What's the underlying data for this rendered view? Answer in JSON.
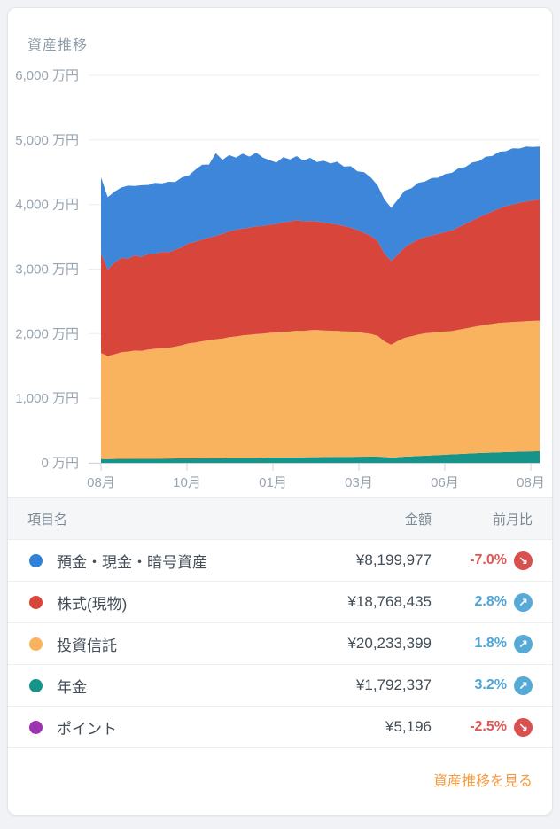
{
  "card": {
    "title": "資産推移"
  },
  "chart_data": {
    "type": "area",
    "stacked": true,
    "title": "資産推移",
    "unit": "万円",
    "ylim": [
      0,
      6000
    ],
    "grid": true,
    "legend_position": "table-below",
    "y_ticks": [
      {
        "value": 6000,
        "label": "6,000 万円"
      },
      {
        "value": 5000,
        "label": "5,000 万円"
      },
      {
        "value": 4000,
        "label": "4,000 万円"
      },
      {
        "value": 3000,
        "label": "3,000 万円"
      },
      {
        "value": 2000,
        "label": "2,000 万円"
      },
      {
        "value": 1000,
        "label": "1,000 万円"
      },
      {
        "value": 0,
        "label": "0 万円"
      }
    ],
    "x_ticks": [
      "08月",
      "10月",
      "01月",
      "03月",
      "06月",
      "08月"
    ],
    "series_note": "values in 万円, listed bottom-of-stack first; latest values match table amounts",
    "series": [
      {
        "name": "ポイント",
        "color": "#9c34b2",
        "values_constant": 0.5
      },
      {
        "name": "年金",
        "color": "#17948a",
        "values": [
          60,
          58,
          60,
          62,
          61,
          63,
          64,
          63,
          65,
          66,
          67,
          68,
          70,
          69,
          71,
          72,
          73,
          74,
          73,
          75,
          76,
          78,
          77,
          79,
          80,
          82,
          83,
          84,
          83,
          85,
          86,
          88,
          87,
          89,
          90,
          92,
          91,
          93,
          94,
          95,
          96,
          95,
          90,
          82,
          88,
          95,
          100,
          105,
          110,
          115,
          120,
          125,
          130,
          135,
          140,
          145,
          150,
          154,
          158,
          162,
          165,
          168,
          171,
          174,
          177,
          179
        ]
      },
      {
        "name": "投資信託",
        "color": "#f9b25d",
        "values": [
          1640,
          1595,
          1620,
          1650,
          1660,
          1675,
          1670,
          1690,
          1700,
          1710,
          1715,
          1730,
          1750,
          1780,
          1790,
          1810,
          1825,
          1840,
          1850,
          1870,
          1880,
          1895,
          1905,
          1915,
          1920,
          1930,
          1935,
          1945,
          1950,
          1960,
          1955,
          1965,
          1970,
          1960,
          1955,
          1950,
          1945,
          1940,
          1930,
          1915,
          1900,
          1870,
          1790,
          1745,
          1800,
          1840,
          1860,
          1880,
          1895,
          1900,
          1905,
          1908,
          1910,
          1925,
          1940,
          1955,
          1970,
          1985,
          1995,
          2005,
          2010,
          2013,
          2016,
          2018,
          2020,
          2023
        ]
      },
      {
        "name": "株式(現物)",
        "color": "#d8453b",
        "values": [
          1540,
          1340,
          1420,
          1460,
          1440,
          1470,
          1455,
          1480,
          1470,
          1490,
          1480,
          1500,
          1520,
          1550,
          1560,
          1575,
          1590,
          1600,
          1620,
          1640,
          1650,
          1655,
          1660,
          1670,
          1665,
          1675,
          1680,
          1695,
          1705,
          1715,
          1700,
          1690,
          1680,
          1670,
          1660,
          1650,
          1630,
          1610,
          1580,
          1550,
          1520,
          1470,
          1360,
          1300,
          1340,
          1400,
          1440,
          1470,
          1490,
          1505,
          1520,
          1540,
          1560,
          1590,
          1620,
          1650,
          1680,
          1710,
          1740,
          1770,
          1800,
          1820,
          1840,
          1855,
          1865,
          1877
        ]
      },
      {
        "name": "預金・現金・暗号資産",
        "color": "#3d86da",
        "values": [
          1180,
          1120,
          1100,
          1090,
          1130,
          1080,
          1110,
          1070,
          1100,
          1060,
          1090,
          1050,
          1080,
          1050,
          1120,
          1160,
          1130,
          1280,
          1150,
          1180,
          1120,
          1160,
          1100,
          1140,
          1060,
          1000,
          950,
          1010,
          960,
          990,
          940,
          980,
          920,
          960,
          930,
          970,
          920,
          950,
          910,
          940,
          900,
          860,
          840,
          820,
          850,
          880,
          850,
          880,
          860,
          890,
          870,
          900,
          890,
          910,
          880,
          900,
          870,
          890,
          860,
          880,
          850,
          870,
          840,
          850,
          830,
          820
        ]
      }
    ],
    "axis_colors": {
      "grid": "#ededee",
      "axis_line": "#ccd6de",
      "tick_text": "#98a4b0"
    }
  },
  "table": {
    "headers": {
      "item": "項目名",
      "amount": "金額",
      "change": "前月比"
    },
    "rows": [
      {
        "label": "預金・現金・暗号資産",
        "color": "#3181d6",
        "amount": "¥8,199,977",
        "change": "-7.0%",
        "direction": "down"
      },
      {
        "label": "株式(現物)",
        "color": "#d8453b",
        "amount": "¥18,768,435",
        "change": "2.8%",
        "direction": "up"
      },
      {
        "label": "投資信託",
        "color": "#f9b25d",
        "amount": "¥20,233,399",
        "change": "1.8%",
        "direction": "up"
      },
      {
        "label": "年金",
        "color": "#17948a",
        "amount": "¥1,792,337",
        "change": "3.2%",
        "direction": "up"
      },
      {
        "label": "ポイント",
        "color": "#9c34b2",
        "amount": "¥5,196",
        "change": "-2.5%",
        "direction": "down"
      }
    ],
    "colors": {
      "up": "#4ba5d9",
      "down": "#e15552",
      "badge_up": "#57a9d6",
      "badge_down": "#d9514f"
    },
    "arrows": {
      "up": "↗",
      "down": "↘"
    }
  },
  "footer": {
    "link_label": "資産推移を見る"
  }
}
